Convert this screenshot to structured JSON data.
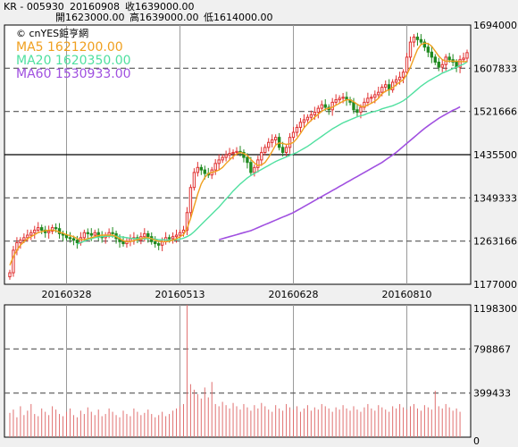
{
  "header": {
    "symbol": "KR - 005930",
    "date": "20160908",
    "close": "收1639000.00",
    "open": "開1623000.00",
    "high": "高1639000.00",
    "low": "低1614000.00"
  },
  "watermark": "© cnYES鉅亨網",
  "legend": {
    "ma5": "MA5 1621200.00",
    "ma20": "MA20 1620350.00",
    "ma60": "MA60 1530933.00"
  },
  "colors": {
    "up": "#e03030",
    "down": "#208a20",
    "ma5": "#f0a020",
    "ma20": "#50e0a0",
    "ma60": "#a050e0",
    "volume": "#e07070"
  },
  "chart_data": [
    {
      "type": "candlestick",
      "title": "",
      "y_ticks": [
        1694000,
        1607833.3,
        1521666.6,
        1435500,
        1349333.3,
        1263166.6,
        1177000
      ],
      "y_tick_labels": [
        "1694000.0",
        "1607833.3",
        "1521666.6",
        "1435500.0",
        "1349333.3",
        "1263166.6",
        "1177000.0"
      ],
      "ylim": [
        1177000,
        1694000
      ],
      "x_tick_labels": [
        "20160328",
        "20160513",
        "20160628",
        "20160810"
      ],
      "x_tick_index": [
        16,
        48,
        80,
        112
      ],
      "close": [
        1200000,
        1245000,
        1260000,
        1265000,
        1270000,
        1275000,
        1280000,
        1285000,
        1290000,
        1285000,
        1280000,
        1283000,
        1290000,
        1288000,
        1278000,
        1275000,
        1270000,
        1268000,
        1265000,
        1260000,
        1270000,
        1280000,
        1278000,
        1275000,
        1280000,
        1272000,
        1270000,
        1275000,
        1280000,
        1278000,
        1268000,
        1262000,
        1258000,
        1263000,
        1268000,
        1270000,
        1265000,
        1272000,
        1278000,
        1272000,
        1262000,
        1258000,
        1255000,
        1262000,
        1270000,
        1268000,
        1272000,
        1275000,
        1280000,
        1285000,
        1320000,
        1370000,
        1400000,
        1410000,
        1405000,
        1398000,
        1395000,
        1405000,
        1418000,
        1425000,
        1430000,
        1435000,
        1438000,
        1440000,
        1442000,
        1440000,
        1430000,
        1420000,
        1400000,
        1410000,
        1425000,
        1440000,
        1450000,
        1460000,
        1465000,
        1470000,
        1450000,
        1440000,
        1450000,
        1470000,
        1480000,
        1490000,
        1500000,
        1505000,
        1510000,
        1515000,
        1520000,
        1528000,
        1535000,
        1530000,
        1525000,
        1540000,
        1545000,
        1548000,
        1550000,
        1545000,
        1540000,
        1525000,
        1520000,
        1530000,
        1540000,
        1548000,
        1550000,
        1555000,
        1560000,
        1570000,
        1575000,
        1565000,
        1580000,
        1585000,
        1590000,
        1600000,
        1630000,
        1660000,
        1670000,
        1665000,
        1660000,
        1650000,
        1640000,
        1630000,
        1620000,
        1610000,
        1615000,
        1630000,
        1625000,
        1620000,
        1610000,
        1625000,
        1628000,
        1639000
      ],
      "ma5": [
        1215000,
        1232000,
        1245000,
        1255000,
        1262000,
        1268000,
        1272000,
        1276000,
        1280000,
        1282000,
        1284000,
        1285000,
        1285000,
        1284000,
        1281000,
        1279000,
        1276000,
        1274000,
        1272000,
        1268000,
        1266000,
        1266000,
        1268000,
        1270000,
        1272000,
        1274000,
        1275000,
        1275000,
        1275000,
        1275000,
        1272000,
        1268000,
        1264000,
        1262000,
        1262000,
        1264000,
        1266000,
        1268000,
        1270000,
        1270000,
        1268000,
        1265000,
        1263000,
        1262000,
        1262000,
        1263000,
        1265000,
        1268000,
        1272000,
        1276000,
        1288000,
        1308000,
        1333000,
        1357000,
        1377000,
        1390000,
        1398000,
        1400000,
        1402000,
        1405000,
        1410000,
        1418000,
        1425000,
        1432000,
        1437000,
        1440000,
        1438000,
        1434000,
        1426000,
        1419000,
        1414000,
        1415000,
        1420000,
        1430000,
        1442000,
        1455000,
        1459000,
        1458000,
        1456000,
        1457000,
        1460000,
        1468000,
        1478000,
        1489000,
        1497000,
        1504000,
        1510000,
        1516000,
        1522000,
        1526000,
        1528000,
        1530000,
        1534000,
        1538000,
        1542000,
        1545000,
        1545000,
        1541000,
        1536000,
        1532000,
        1531000,
        1535000,
        1538000,
        1542000,
        1548000,
        1557000,
        1562000,
        1565000,
        1569000,
        1575000,
        1580000,
        1585000,
        1595000,
        1610000,
        1628000,
        1645000,
        1655000,
        1658000,
        1657000,
        1652000,
        1642000,
        1632000,
        1625000,
        1622000,
        1622000,
        1622000,
        1622000,
        1621000,
        1621000,
        1621200
      ],
      "ma20": [
        null,
        null,
        null,
        null,
        null,
        null,
        null,
        null,
        null,
        null,
        null,
        null,
        null,
        null,
        null,
        null,
        null,
        null,
        null,
        1257000,
        1260000,
        1263000,
        1266000,
        1268000,
        1270000,
        1271000,
        1272000,
        1273000,
        1273000,
        1273000,
        1273000,
        1272000,
        1271000,
        1270000,
        1269000,
        1268000,
        1268000,
        1268000,
        1268000,
        1268000,
        1268000,
        1267000,
        1266000,
        1266000,
        1265000,
        1265000,
        1265000,
        1266000,
        1267000,
        1269000,
        1272000,
        1276000,
        1282000,
        1289000,
        1296000,
        1303000,
        1310000,
        1317000,
        1324000,
        1331000,
        1339000,
        1347000,
        1355000,
        1363000,
        1370000,
        1377000,
        1383000,
        1389000,
        1394000,
        1398000,
        1402000,
        1406000,
        1410000,
        1414000,
        1418000,
        1422000,
        1425000,
        1428000,
        1431000,
        1434000,
        1437000,
        1440000,
        1444000,
        1448000,
        1452000,
        1457000,
        1462000,
        1467000,
        1472000,
        1477000,
        1482000,
        1487000,
        1491000,
        1495000,
        1499000,
        1502000,
        1505000,
        1508000,
        1511000,
        1513000,
        1515000,
        1518000,
        1520000,
        1522000,
        1524000,
        1527000,
        1529000,
        1531000,
        1533000,
        1536000,
        1539000,
        1543000,
        1548000,
        1554000,
        1560000,
        1566000,
        1572000,
        1577000,
        1582000,
        1586000,
        1590000,
        1594000,
        1598000,
        1601000,
        1604000,
        1607000,
        1610000,
        1613000,
        1616000,
        1620350
      ],
      "ma60": [
        null,
        null,
        null,
        null,
        null,
        null,
        null,
        null,
        null,
        null,
        null,
        null,
        null,
        null,
        null,
        null,
        null,
        null,
        null,
        null,
        null,
        null,
        null,
        null,
        null,
        null,
        null,
        null,
        null,
        null,
        null,
        null,
        null,
        null,
        null,
        null,
        null,
        null,
        null,
        null,
        null,
        null,
        null,
        null,
        null,
        null,
        null,
        null,
        null,
        null,
        null,
        null,
        null,
        null,
        null,
        null,
        null,
        null,
        null,
        1266000,
        1268000,
        1270000,
        1272000,
        1274000,
        1276000,
        1278000,
        1280000,
        1282000,
        1284000,
        1287000,
        1290000,
        1293000,
        1296000,
        1299000,
        1302000,
        1305000,
        1308000,
        1311000,
        1314000,
        1317000,
        1320000,
        1324000,
        1328000,
        1332000,
        1336000,
        1340000,
        1344000,
        1348000,
        1352000,
        1356000,
        1360000,
        1364000,
        1368000,
        1372000,
        1376000,
        1380000,
        1384000,
        1388000,
        1392000,
        1396000,
        1400000,
        1404000,
        1408000,
        1412000,
        1416000,
        1420000,
        1425000,
        1430000,
        1435000,
        1440000,
        1446000,
        1452000,
        1458000,
        1464000,
        1470000,
        1476000,
        1482000,
        1488000,
        1493000,
        1498000,
        1503000,
        1508000,
        1512000,
        1516000,
        1520000,
        1524000,
        1527000,
        1530933
      ]
    },
    {
      "type": "bar",
      "title": "",
      "y_ticks": [
        1198300,
        798867,
        399433,
        0
      ],
      "y_tick_labels": [
        "1198300",
        "798867",
        "399433",
        "0"
      ],
      "ylim": [
        0,
        1198300
      ],
      "volume": [
        220000,
        250000,
        180000,
        280000,
        200000,
        240000,
        300000,
        210000,
        190000,
        260000,
        230000,
        200000,
        280000,
        250000,
        210000,
        190000,
        230000,
        260000,
        200000,
        180000,
        240000,
        210000,
        270000,
        230000,
        200000,
        250000,
        190000,
        210000,
        260000,
        230000,
        200000,
        180000,
        240000,
        210000,
        190000,
        260000,
        230000,
        200000,
        220000,
        250000,
        210000,
        180000,
        200000,
        230000,
        190000,
        210000,
        240000,
        260000,
        280000,
        300000,
        1198300,
        480000,
        430000,
        390000,
        350000,
        450000,
        360000,
        500000,
        300000,
        280000,
        320000,
        290000,
        260000,
        310000,
        280000,
        250000,
        300000,
        270000,
        240000,
        290000,
        260000,
        310000,
        280000,
        250000,
        230000,
        290000,
        260000,
        240000,
        300000,
        270000,
        250000,
        280000,
        230000,
        260000,
        290000,
        240000,
        270000,
        250000,
        300000,
        280000,
        260000,
        230000,
        270000,
        250000,
        290000,
        260000,
        240000,
        280000,
        250000,
        230000,
        270000,
        300000,
        260000,
        240000,
        290000,
        270000,
        250000,
        230000,
        280000,
        260000,
        300000,
        270000,
        250000,
        280000,
        300000,
        260000,
        240000,
        290000,
        270000,
        250000,
        420000,
        280000,
        260000,
        300000,
        270000,
        240000,
        260000,
        230000
      ]
    }
  ]
}
